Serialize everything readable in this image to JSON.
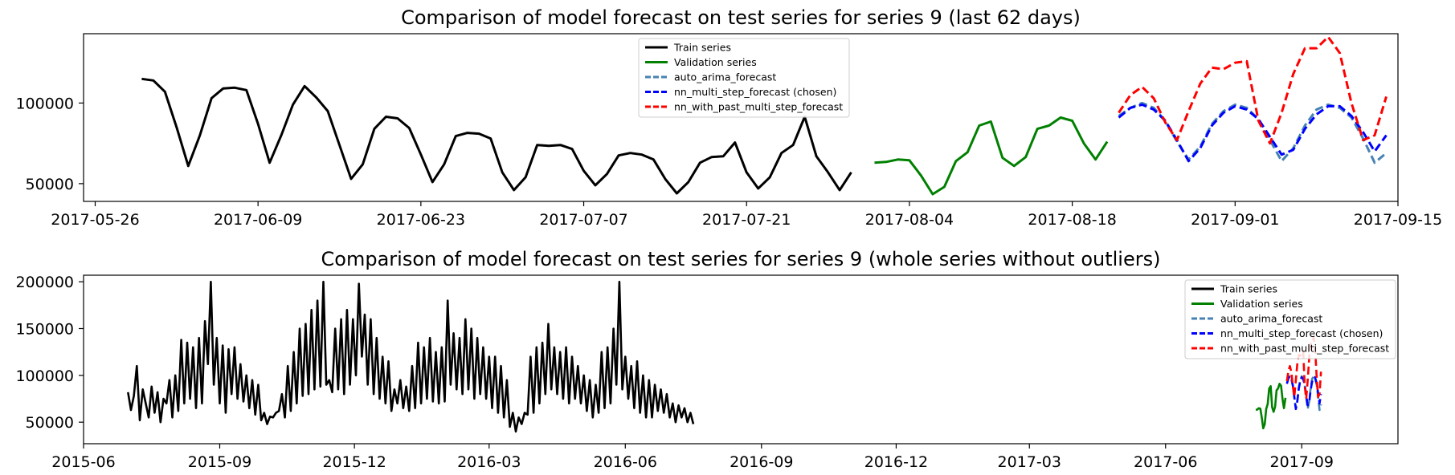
{
  "chart_data": [
    {
      "type": "line",
      "title": "Comparison of model forecast on test series for series 9 (last 62 days)",
      "xlabel": "",
      "ylabel": "",
      "x_axis_type": "date",
      "xlim": [
        "2017-05-25",
        "2017-09-15"
      ],
      "ylim": [
        39000,
        143000
      ],
      "x_ticks": [
        "2017-05-26",
        "2017-06-09",
        "2017-06-23",
        "2017-07-07",
        "2017-07-21",
        "2017-08-04",
        "2017-08-18",
        "2017-09-01",
        "2017-09-15"
      ],
      "y_ticks": [
        50000,
        100000
      ],
      "grid": false,
      "legend": {
        "position": "top-center",
        "entries": [
          {
            "name": "Train series",
            "color": "#000000",
            "style": "solid"
          },
          {
            "name": "Validation series",
            "color": "#008000",
            "style": "solid"
          },
          {
            "name": "auto_arima_forecast",
            "color": "#4682B4",
            "style": "dashed"
          },
          {
            "name": "nn_multi_step_forecast (chosen)",
            "color": "#0000FF",
            "style": "dashed"
          },
          {
            "name": "nn_with_past_multi_step_forecast",
            "color": "#FF0000",
            "style": "dashed"
          }
        ]
      },
      "series": [
        {
          "name": "Train series",
          "color": "#000000",
          "style": "solid",
          "start": "2017-05-30",
          "values": [
            115000,
            114000,
            107000,
            85000,
            61000,
            80000,
            103000,
            109000,
            109500,
            108000,
            87000,
            63000,
            80000,
            99000,
            110500,
            103500,
            95000,
            74000,
            53000,
            62000,
            84000,
            91500,
            90500,
            84500,
            68000,
            51000,
            62000,
            79500,
            81500,
            81000,
            78000,
            57000,
            46000,
            54000,
            74000,
            73500,
            74000,
            71500,
            58000,
            49000,
            56000,
            67500,
            69000,
            68000,
            65000,
            53000,
            44000,
            51000,
            63000,
            66500,
            67000,
            75500,
            57000,
            47000,
            54000,
            69000,
            74000,
            91500,
            67000,
            57000,
            46000,
            57000
          ]
        },
        {
          "name": "Validation series",
          "color": "#008000",
          "style": "solid",
          "start": "2017-08-01",
          "values": [
            63000,
            63500,
            65000,
            64500,
            55000,
            43500,
            48000,
            64000,
            69500,
            86000,
            88500,
            66000,
            61000,
            66500,
            84000,
            86000,
            91000,
            89000,
            75000,
            65000,
            76000
          ]
        },
        {
          "name": "auto_arima_forecast",
          "color": "#4682B4",
          "style": "dashed",
          "start": "2017-08-22",
          "values": [
            92000,
            97000,
            100000,
            97000,
            89000,
            76000,
            65000,
            73000,
            87000,
            95000,
            99000,
            97000,
            90000,
            77000,
            64000,
            72000,
            86000,
            96000,
            99000,
            97000,
            91000,
            78000,
            63000,
            69000
          ]
        },
        {
          "name": "nn_multi_step_forecast (chosen)",
          "color": "#0000FF",
          "style": "dashed",
          "start": "2017-08-22",
          "values": [
            91000,
            97000,
            99000,
            96000,
            89000,
            77000,
            64000,
            72000,
            86000,
            94000,
            98000,
            96000,
            90000,
            79000,
            68000,
            71000,
            84000,
            93000,
            98000,
            98000,
            92000,
            82000,
            70000,
            80000
          ]
        },
        {
          "name": "nn_with_past_multi_step_forecast",
          "color": "#FF0000",
          "style": "dashed",
          "start": "2017-08-22",
          "values": [
            94000,
            105000,
            110000,
            103000,
            88000,
            77000,
            95000,
            112000,
            122000,
            121000,
            125000,
            126000,
            89000,
            75000,
            94000,
            118000,
            134000,
            134000,
            141000,
            131000,
            100000,
            77000,
            80000,
            104000
          ]
        }
      ]
    },
    {
      "type": "line",
      "title": "Comparison of model forecast on test series for series 9 (whole series without outliers)",
      "xlabel": "",
      "ylabel": "",
      "x_axis_type": "date",
      "xlim": [
        "2015-06-01",
        "2017-11-05"
      ],
      "ylim": [
        27000,
        207000
      ],
      "x_ticks": [
        "2015-06",
        "2015-09",
        "2015-12",
        "2016-03",
        "2016-06",
        "2016-09",
        "2016-12",
        "2017-03",
        "2017-06",
        "2017-09"
      ],
      "y_ticks": [
        50000,
        100000,
        150000,
        200000
      ],
      "grid": false,
      "legend": {
        "position": "top-right",
        "entries": [
          {
            "name": "Train series",
            "color": "#000000",
            "style": "solid"
          },
          {
            "name": "Validation series",
            "color": "#008000",
            "style": "solid"
          },
          {
            "name": "auto_arima_forecast",
            "color": "#4682B4",
            "style": "dashed"
          },
          {
            "name": "nn_multi_step_forecast (chosen)",
            "color": "#0000FF",
            "style": "dashed"
          },
          {
            "name": "nn_with_past_multi_step_forecast",
            "color": "#FF0000",
            "style": "dashed"
          }
        ]
      },
      "series": [
        {
          "name": "Train series",
          "color": "#000000",
          "style": "solid",
          "start": "2015-07-01",
          "step_days": 2,
          "values": [
            82000,
            63000,
            78000,
            110000,
            52000,
            85000,
            70000,
            55000,
            88000,
            60000,
            82000,
            50000,
            75000,
            70000,
            95000,
            55000,
            100000,
            62000,
            138000,
            70000,
            135000,
            75000,
            130000,
            65000,
            140000,
            70000,
            158000,
            112000,
            200000,
            90000,
            140000,
            70000,
            132000,
            60000,
            128000,
            80000,
            130000,
            75000,
            112000,
            72000,
            100000,
            65000,
            95000,
            58000,
            90000,
            52000,
            60000,
            48000,
            56000,
            55000,
            60000,
            62000,
            80000,
            55000,
            110000,
            62000,
            125000,
            70000,
            150000,
            78000,
            155000,
            80000,
            170000,
            85000,
            180000,
            88000,
            200000,
            90000,
            95000,
            82000,
            150000,
            85000,
            160000,
            80000,
            170000,
            90000,
            160000,
            100000,
            198000,
            120000,
            165000,
            90000,
            160000,
            80000,
            140000,
            75000,
            120000,
            70000,
            115000,
            62000,
            85000,
            70000,
            95000,
            65000,
            88000,
            62000,
            110000,
            65000,
            135000,
            70000,
            130000,
            75000,
            140000,
            72000,
            125000,
            70000,
            130000,
            72000,
            180000,
            90000,
            145000,
            85000,
            140000,
            80000,
            160000,
            85000,
            150000,
            75000,
            140000,
            80000,
            130000,
            75000,
            120000,
            65000,
            120000,
            60000,
            110000,
            55000,
            95000,
            45000,
            60000,
            40000,
            55000,
            48000,
            60000,
            58000,
            120000,
            60000,
            130000,
            70000,
            135000,
            80000,
            155000,
            85000,
            130000,
            80000,
            125000,
            75000,
            130000,
            70000,
            120000,
            75000,
            110000,
            70000,
            100000,
            62000,
            95000,
            55000,
            90000,
            60000,
            125000,
            65000,
            130000,
            70000,
            150000,
            90000,
            200000,
            85000,
            120000,
            75000,
            110000,
            65000,
            115000,
            60000,
            100000,
            55000,
            95000,
            55000,
            90000,
            62000,
            85000,
            60000,
            80000,
            55000,
            70000,
            50000,
            68000,
            55000,
            65000,
            50000,
            60000,
            48000
          ]
        },
        {
          "name": "Validation series",
          "color": "#008000",
          "style": "solid",
          "start": "2017-08-01",
          "values": [
            63000,
            63500,
            65000,
            64500,
            55000,
            43500,
            48000,
            64000,
            69500,
            86000,
            88500,
            66000,
            61000,
            66500,
            84000,
            86000,
            91000,
            89000,
            75000,
            65000,
            76000
          ]
        },
        {
          "name": "auto_arima_forecast",
          "color": "#4682B4",
          "style": "dashed",
          "start": "2017-08-22",
          "values": [
            92000,
            97000,
            100000,
            97000,
            89000,
            76000,
            65000,
            73000,
            87000,
            95000,
            99000,
            97000,
            90000,
            77000,
            64000,
            72000,
            86000,
            96000,
            99000,
            97000,
            91000,
            78000,
            63000,
            69000
          ]
        },
        {
          "name": "nn_multi_step_forecast (chosen)",
          "color": "#0000FF",
          "style": "dashed",
          "start": "2017-08-22",
          "values": [
            91000,
            97000,
            99000,
            96000,
            89000,
            77000,
            64000,
            72000,
            86000,
            94000,
            98000,
            96000,
            90000,
            79000,
            68000,
            71000,
            84000,
            93000,
            98000,
            98000,
            92000,
            82000,
            70000,
            80000
          ]
        },
        {
          "name": "nn_with_past_multi_step_forecast",
          "color": "#FF0000",
          "style": "dashed",
          "start": "2017-08-22",
          "values": [
            94000,
            105000,
            110000,
            103000,
            88000,
            77000,
            95000,
            112000,
            122000,
            121000,
            125000,
            126000,
            89000,
            75000,
            94000,
            118000,
            134000,
            134000,
            141000,
            131000,
            100000,
            77000,
            80000,
            104000
          ]
        }
      ]
    }
  ]
}
